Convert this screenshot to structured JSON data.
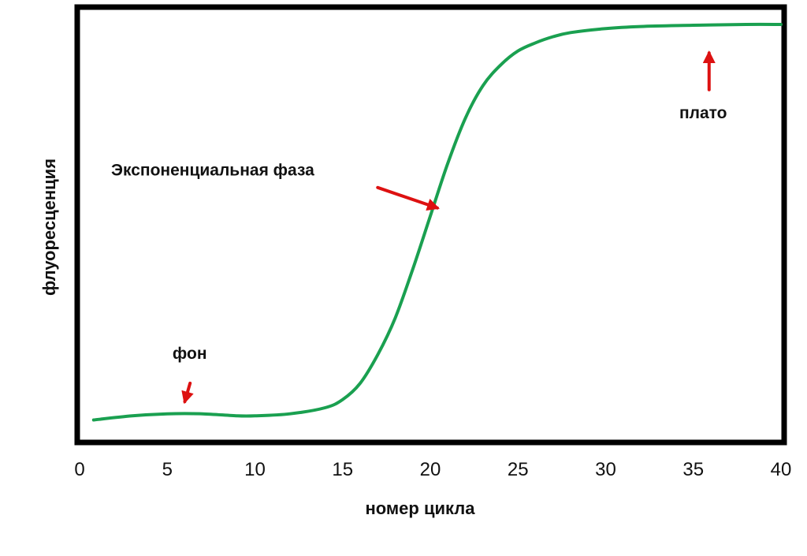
{
  "chart_data": {
    "type": "line",
    "title": "",
    "xlabel": "номер цикла",
    "ylabel": "флуоресценция",
    "xlim": [
      0,
      40
    ],
    "ylim": [
      0,
      1
    ],
    "x_ticks": [
      0,
      5,
      10,
      15,
      20,
      25,
      30,
      35,
      40
    ],
    "y_ticks_shown": false,
    "grid": false,
    "legend": "none",
    "series": [
      {
        "color": "#1aa050",
        "x": [
          0.8,
          3,
          5,
          7,
          9,
          10,
          12,
          14,
          15,
          16,
          17,
          18,
          19,
          20,
          21,
          22,
          23,
          24,
          25,
          26,
          27,
          28,
          30,
          32,
          35,
          38,
          40
        ],
        "y": [
          0.03,
          0.04,
          0.045,
          0.045,
          0.04,
          0.04,
          0.045,
          0.06,
          0.08,
          0.12,
          0.19,
          0.28,
          0.4,
          0.53,
          0.66,
          0.77,
          0.85,
          0.9,
          0.935,
          0.955,
          0.97,
          0.98,
          0.99,
          0.995,
          0.998,
          1.0,
          1.0
        ]
      }
    ],
    "annotations": [
      {
        "text": "фон",
        "label_x": 5.3,
        "label_y": 0.18,
        "arrow_from": [
          6.3,
          0.12
        ],
        "arrow_to": [
          6.0,
          0.075
        ],
        "arrow_color": "#dd1111"
      },
      {
        "text": "Экспоненциальная фаза",
        "label_x": 1.8,
        "label_y": 0.63,
        "arrow_from": [
          17.0,
          0.6
        ],
        "arrow_to": [
          20.4,
          0.55
        ],
        "arrow_color": "#dd1111"
      },
      {
        "text": "плато",
        "label_x": 34.2,
        "label_y": 0.77,
        "arrow_from": [
          35.9,
          0.84
        ],
        "arrow_to": [
          35.9,
          0.93
        ],
        "arrow_color": "#dd1111"
      }
    ]
  }
}
